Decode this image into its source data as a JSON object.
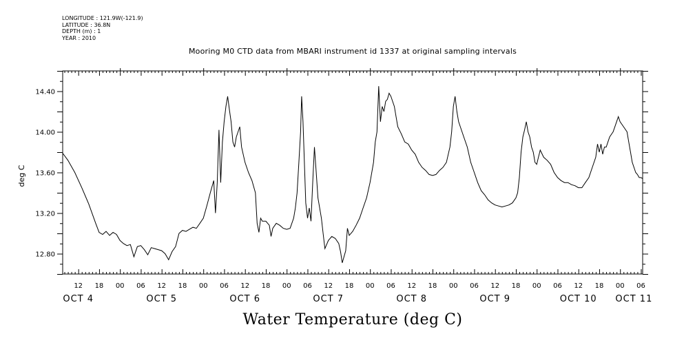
{
  "meta": {
    "longitude": "LONGITUDE : 121.9W(-121.9)",
    "latitude": "LATITUDE : 36.8N",
    "depth": "DEPTH (m) : 1",
    "year": "YEAR : 2010"
  },
  "chart_data": {
    "type": "line",
    "title": "Mooring M0 CTD data from MBARI instrument id 1337 at original sampling intervals",
    "xlabel": "",
    "ylabel": "deg C",
    "bottom_title": "Water Temperature (deg C)",
    "x_units": "hours since OCT 4 00:00",
    "xlim": [
      7.5,
      174.5
    ],
    "ylim": [
      12.6,
      14.6
    ],
    "y_ticks": [
      12.8,
      13.2,
      13.6,
      14.0,
      14.4
    ],
    "y_tick_labels": [
      "12.80",
      "13.20",
      "13.60",
      "14.00",
      "14.40"
    ],
    "x_hour_ticks": [
      12,
      18,
      0,
      6,
      12,
      18,
      0,
      6,
      12,
      18,
      0,
      6,
      12,
      18,
      0,
      6,
      12,
      18,
      0,
      6,
      12,
      18,
      0,
      6,
      12,
      18,
      0,
      6,
      12,
      18,
      0,
      6
    ],
    "x_hour_tick_labels": [
      "12",
      "18",
      "00",
      "06",
      "12",
      "18",
      "00",
      "06",
      "12",
      "18",
      "00",
      "06",
      "12",
      "18",
      "00",
      "06",
      "12",
      "18",
      "00",
      "06",
      "12",
      "18",
      "00",
      "06",
      "12",
      "18",
      "00",
      "06",
      "12",
      "18",
      "00",
      "06"
    ],
    "day_labels": [
      {
        "label": "OCT  4",
        "hour": 12
      },
      {
        "label": "OCT  5",
        "hour": 36
      },
      {
        "label": "OCT  6",
        "hour": 60
      },
      {
        "label": "OCT  7",
        "hour": 84
      },
      {
        "label": "OCT  8",
        "hour": 108
      },
      {
        "label": "OCT  9",
        "hour": 132
      },
      {
        "label": "OCT 10",
        "hour": 156
      },
      {
        "label": "OCT 11",
        "hour": 172
      }
    ],
    "grid": false,
    "series": [
      {
        "points": [
          [
            7.5,
            13.79
          ],
          [
            9,
            13.72
          ],
          [
            11,
            13.6
          ],
          [
            13,
            13.45
          ],
          [
            15,
            13.29
          ],
          [
            17,
            13.1
          ],
          [
            18,
            13.01
          ],
          [
            19,
            12.99
          ],
          [
            20,
            13.02
          ],
          [
            21,
            12.98
          ],
          [
            22,
            13.01
          ],
          [
            23,
            12.99
          ],
          [
            24,
            12.93
          ],
          [
            25,
            12.9
          ],
          [
            26,
            12.88
          ],
          [
            27,
            12.89
          ],
          [
            28,
            12.77
          ],
          [
            29,
            12.87
          ],
          [
            30,
            12.88
          ],
          [
            31,
            12.84
          ],
          [
            32,
            12.79
          ],
          [
            33,
            12.86
          ],
          [
            34,
            12.85
          ],
          [
            35,
            12.84
          ],
          [
            36,
            12.83
          ],
          [
            37,
            12.8
          ],
          [
            38,
            12.74
          ],
          [
            39,
            12.82
          ],
          [
            40,
            12.87
          ],
          [
            41,
            13.0
          ],
          [
            42,
            13.03
          ],
          [
            43,
            13.02
          ],
          [
            44,
            13.04
          ],
          [
            45,
            13.06
          ],
          [
            46,
            13.05
          ],
          [
            47,
            13.1
          ],
          [
            48,
            13.15
          ],
          [
            49,
            13.27
          ],
          [
            50,
            13.4
          ],
          [
            51,
            13.52
          ],
          [
            51.5,
            13.2
          ],
          [
            52,
            13.5
          ],
          [
            52.5,
            14.02
          ],
          [
            53,
            13.5
          ],
          [
            53.5,
            13.9
          ],
          [
            54,
            14.1
          ],
          [
            54.5,
            14.25
          ],
          [
            55,
            14.35
          ],
          [
            55.5,
            14.22
          ],
          [
            56,
            14.1
          ],
          [
            56.5,
            13.9
          ],
          [
            57,
            13.85
          ],
          [
            57.5,
            13.95
          ],
          [
            58,
            14.0
          ],
          [
            58.5,
            14.05
          ],
          [
            59,
            13.85
          ],
          [
            60,
            13.7
          ],
          [
            61,
            13.6
          ],
          [
            62,
            13.52
          ],
          [
            63,
            13.4
          ],
          [
            63.5,
            13.1
          ],
          [
            64,
            13.01
          ],
          [
            64.5,
            13.15
          ],
          [
            65,
            13.12
          ],
          [
            66,
            13.12
          ],
          [
            67,
            13.08
          ],
          [
            67.5,
            12.97
          ],
          [
            68,
            13.05
          ],
          [
            69,
            13.1
          ],
          [
            70,
            13.08
          ],
          [
            71,
            13.05
          ],
          [
            72,
            13.04
          ],
          [
            73,
            13.05
          ],
          [
            74,
            13.15
          ],
          [
            74.5,
            13.25
          ],
          [
            75,
            13.4
          ],
          [
            75.5,
            13.7
          ],
          [
            76,
            14.0
          ],
          [
            76.3,
            14.35
          ],
          [
            76.7,
            14.1
          ],
          [
            77,
            13.8
          ],
          [
            77.5,
            13.3
          ],
          [
            78,
            13.15
          ],
          [
            78.5,
            13.25
          ],
          [
            79,
            13.12
          ],
          [
            79.5,
            13.5
          ],
          [
            80,
            13.85
          ],
          [
            80.5,
            13.6
          ],
          [
            81,
            13.35
          ],
          [
            81.5,
            13.25
          ],
          [
            82,
            13.15
          ],
          [
            82.5,
            13.0
          ],
          [
            83,
            12.85
          ],
          [
            84,
            12.93
          ],
          [
            85,
            12.97
          ],
          [
            86,
            12.95
          ],
          [
            87,
            12.9
          ],
          [
            87.5,
            12.82
          ],
          [
            88,
            12.71
          ],
          [
            89,
            12.83
          ],
          [
            89.5,
            13.05
          ],
          [
            90,
            12.98
          ],
          [
            91,
            13.02
          ],
          [
            92,
            13.08
          ],
          [
            93,
            13.15
          ],
          [
            94,
            13.25
          ],
          [
            95,
            13.35
          ],
          [
            96,
            13.5
          ],
          [
            97,
            13.7
          ],
          [
            97.5,
            13.9
          ],
          [
            98,
            14.0
          ],
          [
            98.5,
            14.45
          ],
          [
            99,
            14.1
          ],
          [
            99.5,
            14.25
          ],
          [
            100,
            14.2
          ],
          [
            100.5,
            14.3
          ],
          [
            101,
            14.32
          ],
          [
            101.5,
            14.38
          ],
          [
            102,
            14.35
          ],
          [
            103,
            14.25
          ],
          [
            103.5,
            14.15
          ],
          [
            104,
            14.05
          ],
          [
            105,
            13.98
          ],
          [
            106,
            13.9
          ],
          [
            107,
            13.88
          ],
          [
            108,
            13.82
          ],
          [
            109,
            13.78
          ],
          [
            110,
            13.7
          ],
          [
            111,
            13.65
          ],
          [
            112,
            13.62
          ],
          [
            113,
            13.58
          ],
          [
            114,
            13.57
          ],
          [
            115,
            13.58
          ],
          [
            116,
            13.62
          ],
          [
            117,
            13.65
          ],
          [
            118,
            13.7
          ],
          [
            119,
            13.85
          ],
          [
            119.5,
            14.0
          ],
          [
            120,
            14.25
          ],
          [
            120.5,
            14.35
          ],
          [
            121,
            14.2
          ],
          [
            121.5,
            14.1
          ],
          [
            122,
            14.05
          ],
          [
            123,
            13.95
          ],
          [
            124,
            13.85
          ],
          [
            125,
            13.7
          ],
          [
            126,
            13.6
          ],
          [
            127,
            13.5
          ],
          [
            128,
            13.42
          ],
          [
            129,
            13.38
          ],
          [
            130,
            13.33
          ],
          [
            131,
            13.3
          ],
          [
            132,
            13.28
          ],
          [
            133,
            13.27
          ],
          [
            134,
            13.26
          ],
          [
            135,
            13.27
          ],
          [
            136,
            13.28
          ],
          [
            137,
            13.3
          ],
          [
            138,
            13.35
          ],
          [
            138.5,
            13.4
          ],
          [
            139,
            13.55
          ],
          [
            139.5,
            13.8
          ],
          [
            140,
            13.95
          ],
          [
            140.5,
            14.02
          ],
          [
            141,
            14.1
          ],
          [
            141.5,
            14.0
          ],
          [
            142,
            13.95
          ],
          [
            142.5,
            13.85
          ],
          [
            143,
            13.8
          ],
          [
            143.5,
            13.7
          ],
          [
            144,
            13.68
          ],
          [
            144.5,
            13.75
          ],
          [
            145,
            13.82
          ],
          [
            146,
            13.75
          ],
          [
            147,
            13.72
          ],
          [
            148,
            13.68
          ],
          [
            149,
            13.6
          ],
          [
            150,
            13.55
          ],
          [
            151,
            13.52
          ],
          [
            152,
            13.5
          ],
          [
            153,
            13.5
          ],
          [
            154,
            13.48
          ],
          [
            155,
            13.47
          ],
          [
            156,
            13.45
          ],
          [
            157,
            13.45
          ],
          [
            158,
            13.5
          ],
          [
            159,
            13.55
          ],
          [
            160,
            13.65
          ],
          [
            161,
            13.75
          ],
          [
            161.5,
            13.88
          ],
          [
            162,
            13.8
          ],
          [
            162.5,
            13.88
          ],
          [
            163,
            13.78
          ],
          [
            163.5,
            13.85
          ],
          [
            164,
            13.85
          ],
          [
            164.5,
            13.9
          ],
          [
            165,
            13.95
          ],
          [
            166,
            14.0
          ],
          [
            166.5,
            14.05
          ],
          [
            167,
            14.1
          ],
          [
            167.5,
            14.15
          ],
          [
            168,
            14.1
          ],
          [
            169,
            14.05
          ],
          [
            170,
            14.0
          ],
          [
            170.5,
            13.9
          ],
          [
            171,
            13.8
          ],
          [
            171.5,
            13.7
          ],
          [
            172,
            13.65
          ],
          [
            172.5,
            13.6
          ],
          [
            173,
            13.58
          ],
          [
            173.5,
            13.55
          ],
          [
            174,
            13.55
          ],
          [
            174.5,
            13.54
          ]
        ]
      }
    ]
  }
}
